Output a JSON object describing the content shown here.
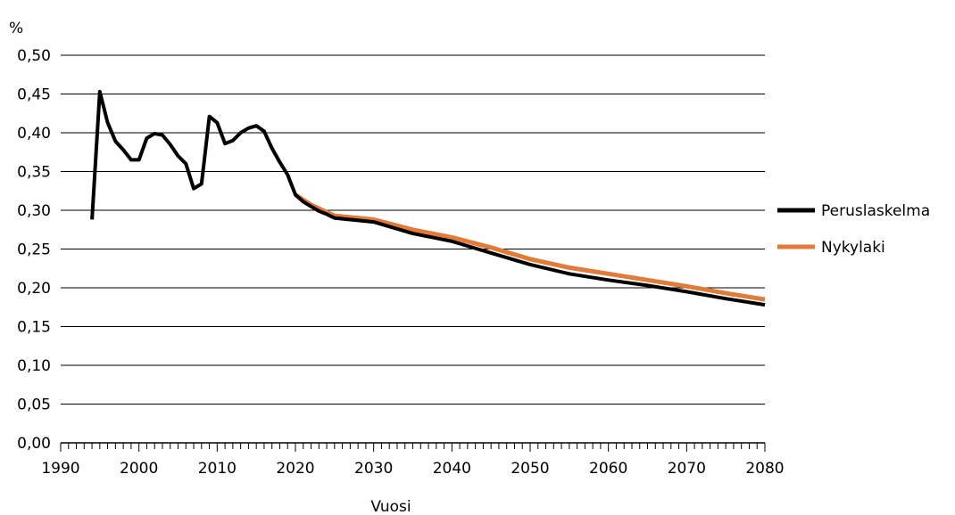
{
  "chart_data": {
    "type": "line",
    "title": "",
    "ylabel": "%",
    "xlabel": "Vuosi",
    "xlim": [
      1990,
      2080
    ],
    "ylim": [
      0.0,
      0.5
    ],
    "x_ticks": [
      "1990",
      "2000",
      "2010",
      "2020",
      "2030",
      "2040",
      "2050",
      "2060",
      "2070",
      "2080"
    ],
    "y_ticks": [
      "0,00",
      "0,05",
      "0,10",
      "0,15",
      "0,20",
      "0,25",
      "0,30",
      "0,35",
      "0,40",
      "0,45",
      "0,50"
    ],
    "grid": "horizontal",
    "legend_position": "right",
    "series": [
      {
        "name": "Peruslaskelma",
        "color": "#000000",
        "x": [
          1994,
          1995,
          1996,
          1997,
          1998,
          1999,
          2000,
          2001,
          2002,
          2003,
          2004,
          2005,
          2006,
          2007,
          2008,
          2009,
          2010,
          2011,
          2012,
          2013,
          2014,
          2015,
          2016,
          2017,
          2018,
          2019,
          2020,
          2021,
          2022,
          2023,
          2024,
          2025,
          2030,
          2035,
          2040,
          2045,
          2050,
          2055,
          2060,
          2065,
          2070,
          2075,
          2080
        ],
        "values": [
          0.288,
          0.453,
          0.413,
          0.389,
          0.378,
          0.365,
          0.365,
          0.393,
          0.399,
          0.397,
          0.385,
          0.37,
          0.36,
          0.328,
          0.334,
          0.421,
          0.413,
          0.386,
          0.39,
          0.4,
          0.406,
          0.409,
          0.402,
          0.38,
          0.362,
          0.346,
          0.32,
          0.311,
          0.305,
          0.299,
          0.295,
          0.29,
          0.285,
          0.27,
          0.26,
          0.245,
          0.23,
          0.218,
          0.21,
          0.203,
          0.195,
          0.186,
          0.178
        ]
      },
      {
        "name": "Nykylaki",
        "color": "#E07B39",
        "x": [
          2020,
          2022,
          2025,
          2030,
          2035,
          2040,
          2045,
          2050,
          2055,
          2060,
          2065,
          2070,
          2075,
          2080
        ],
        "values": [
          0.32,
          0.307,
          0.293,
          0.288,
          0.275,
          0.265,
          0.252,
          0.237,
          0.226,
          0.218,
          0.21,
          0.202,
          0.193,
          0.185
        ]
      }
    ]
  }
}
